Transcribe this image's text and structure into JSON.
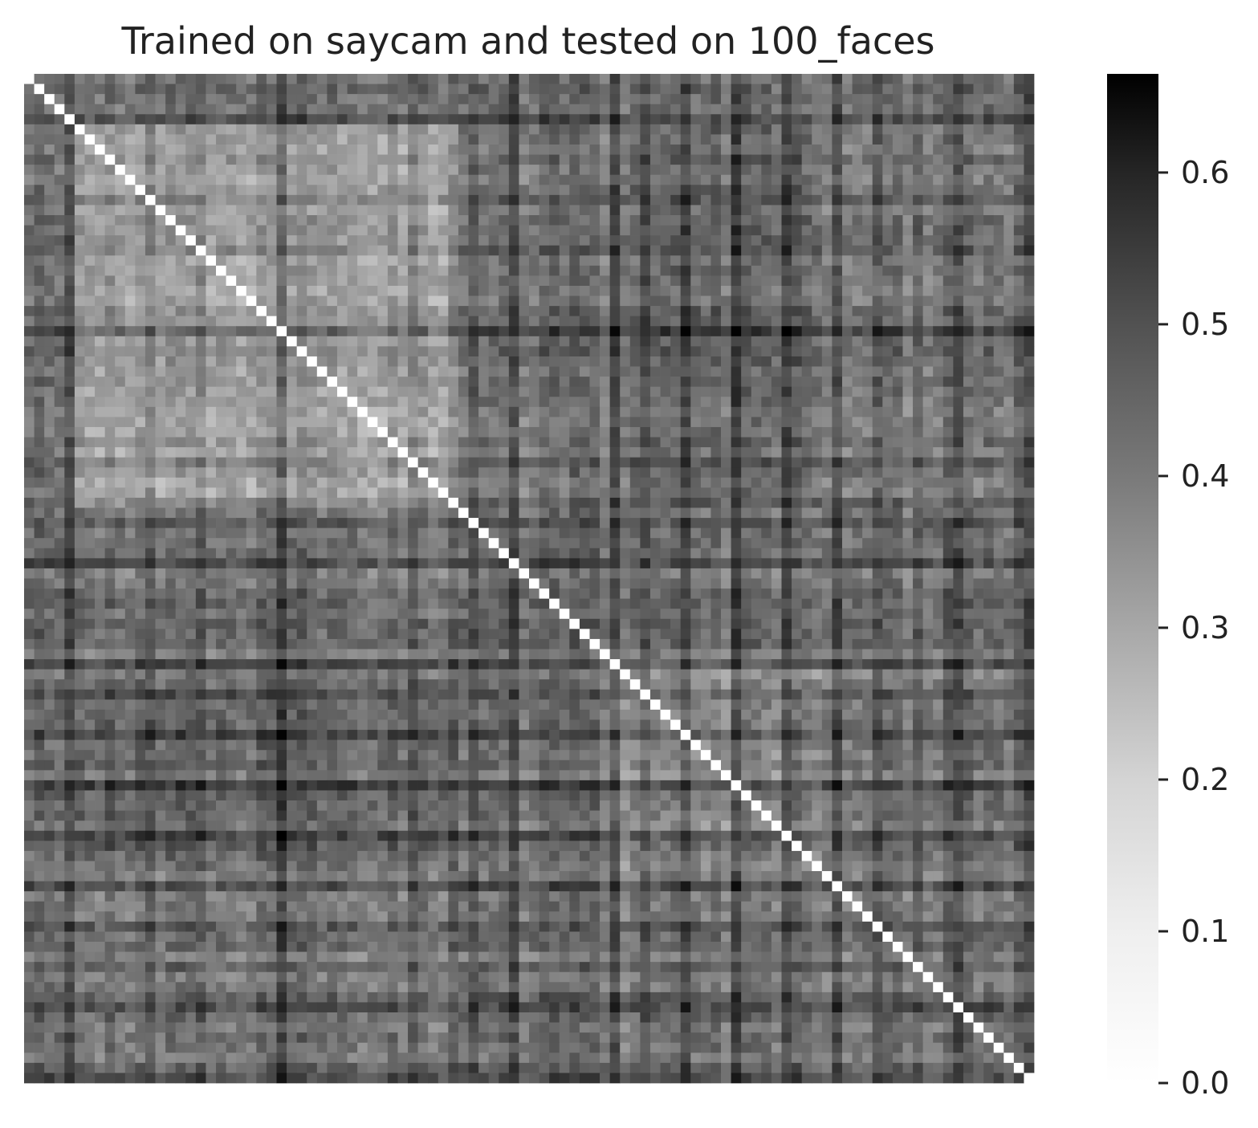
{
  "chart_data": {
    "type": "heatmap",
    "title": "Trained on saycam and tested on 100_faces",
    "rows": 100,
    "cols": 100,
    "matrix": "symmetric pairwise dissimilarity, zero diagonal",
    "xlabel": "",
    "ylabel": "",
    "x_tick_labels": [],
    "y_tick_labels": [],
    "colormap": "Greys",
    "value_range": [
      0.0,
      0.665
    ],
    "colorbar": {
      "ticks": [
        0.0,
        0.1,
        0.2,
        0.3,
        0.4,
        0.5,
        0.6
      ],
      "tick_labels": [
        "0.0",
        "0.1",
        "0.2",
        "0.3",
        "0.4",
        "0.5",
        "0.6"
      ],
      "placement": "right"
    },
    "grid": false
  }
}
